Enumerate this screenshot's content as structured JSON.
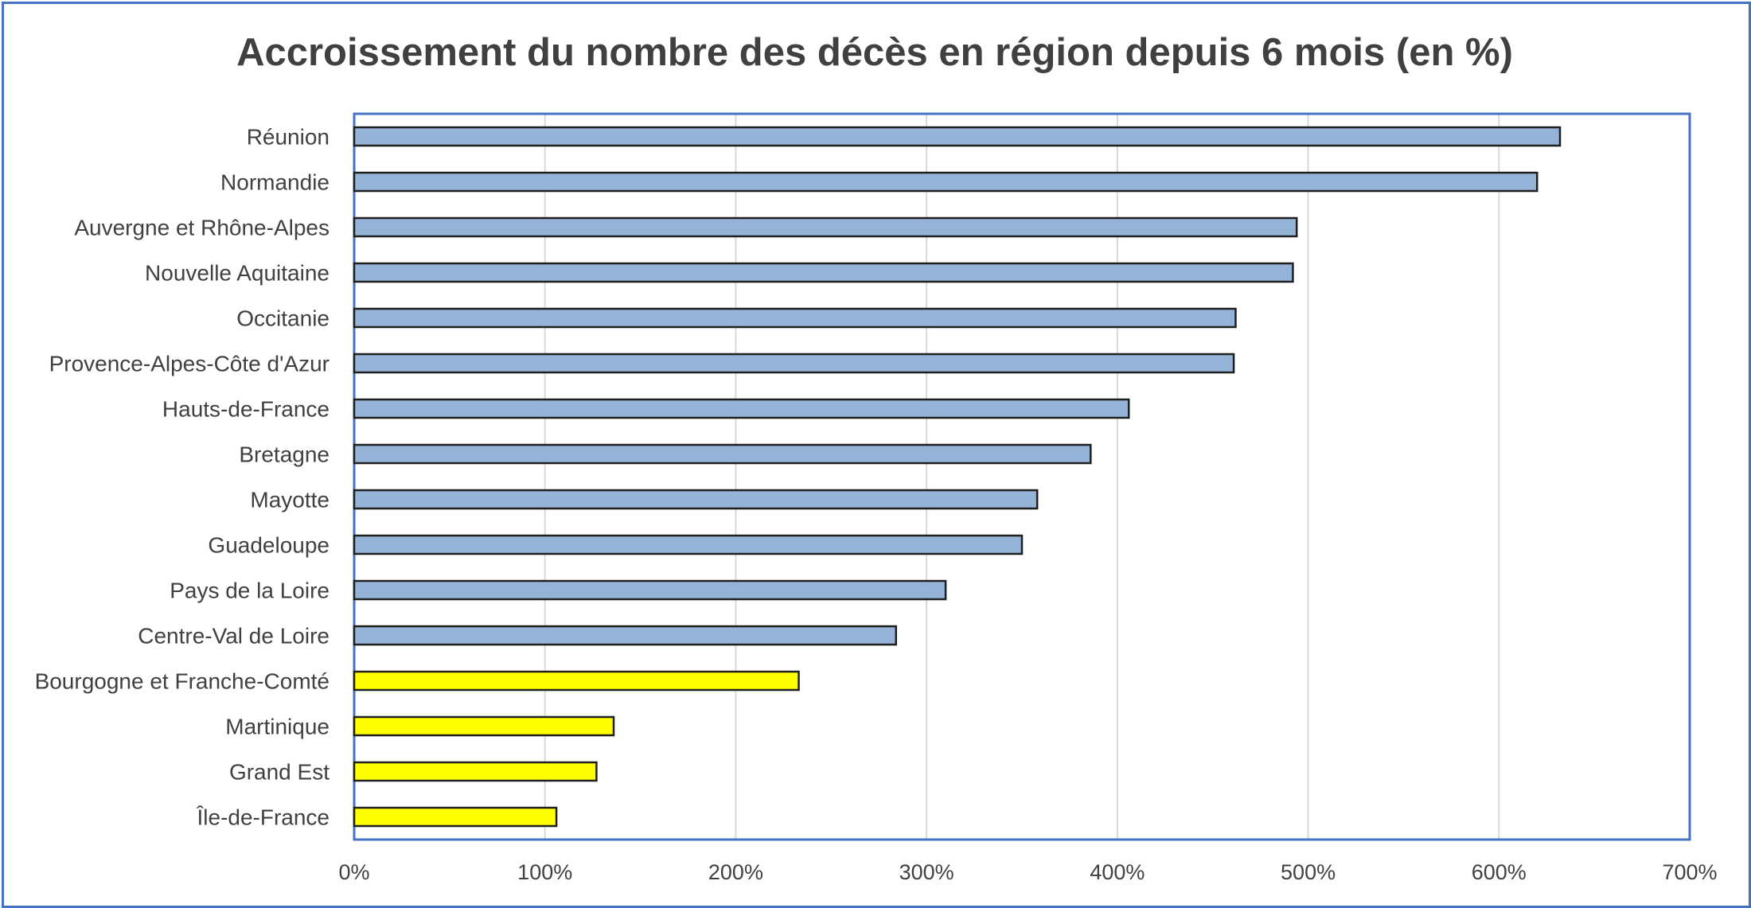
{
  "colors": {
    "frame": "#4472c4",
    "bar_main": "#95b3d7",
    "bar_highlight": "#ffff00",
    "bar_outline": "#1f1f1f",
    "grid": "#d9d9d9",
    "plot_border": "#4472c4",
    "text": "#404040"
  },
  "chart_data": {
    "type": "bar",
    "orientation": "horizontal",
    "title": "Accroissement du nombre des décès en région depuis 6 mois (en %)",
    "xlabel": "",
    "ylabel": "",
    "xlim": [
      0,
      700
    ],
    "x_ticks": [
      0,
      100,
      200,
      300,
      400,
      500,
      600,
      700
    ],
    "x_tick_labels": [
      "0%",
      "100%",
      "200%",
      "300%",
      "400%",
      "500%",
      "600%",
      "700%"
    ],
    "grid": "vertical",
    "legend": "none",
    "categories": [
      "Réunion",
      "Normandie",
      "Auvergne et Rhône-Alpes",
      "Nouvelle Aquitaine",
      "Occitanie",
      "Provence-Alpes-Côte d'Azur",
      "Hauts-de-France",
      "Bretagne",
      "Mayotte",
      "Guadeloupe",
      "Pays de la Loire",
      "Centre-Val de Loire",
      "Bourgogne et Franche-Comté",
      "Martinique",
      "Grand Est",
      "Île-de-France"
    ],
    "values": [
      632,
      620,
      494,
      492,
      462,
      461,
      406,
      386,
      358,
      350,
      310,
      284,
      233,
      136,
      127,
      106
    ],
    "highlighted": [
      false,
      false,
      false,
      false,
      false,
      false,
      false,
      false,
      false,
      false,
      false,
      false,
      true,
      true,
      true,
      true
    ]
  }
}
